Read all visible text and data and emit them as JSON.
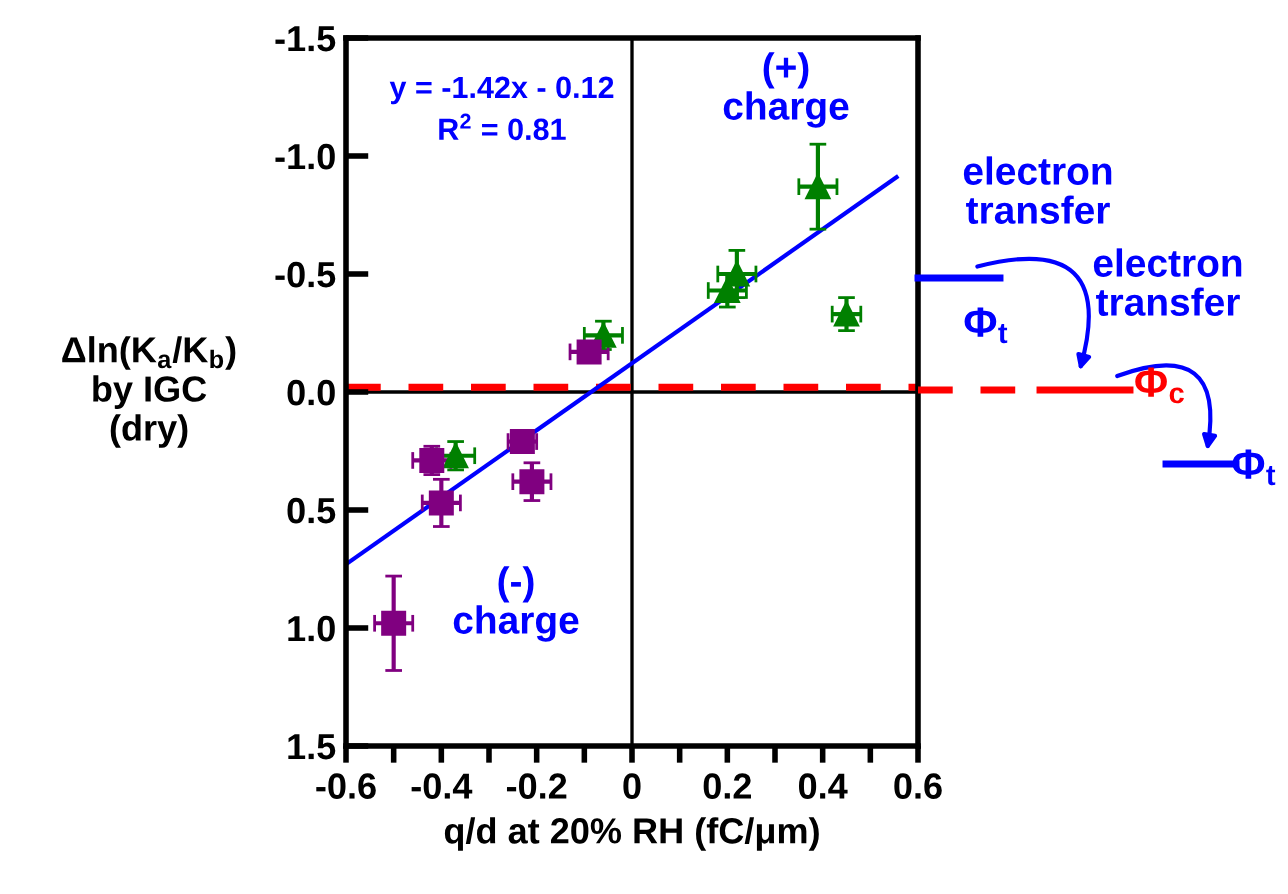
{
  "chart_data": {
    "type": "scatter",
    "xlabel": "q/d at 20% RH (fC/μm)",
    "ylabel": "Δln(K$_{a}$/K$_{b}$)\nby IGC\n(dry)",
    "xlim": [
      -0.6,
      0.6
    ],
    "ylim": [
      1.5,
      -1.5
    ],
    "xticks": [
      -0.6,
      {
        "value": -0.5,
        "label": null
      },
      -0.4,
      {
        "value": -0.3,
        "label": null
      },
      -0.2,
      {
        "value": -0.1,
        "label": null
      },
      {
        "value": 0,
        "label": "0"
      },
      {
        "value": 0.1,
        "label": null
      },
      0.2,
      {
        "value": 0.3,
        "label": null
      },
      0.4,
      {
        "value": 0.5,
        "label": null
      },
      0.6
    ],
    "yticks": [
      {
        "value": -1.5,
        "label": "-1.5"
      },
      {
        "value": -1.0,
        "label": "-1.0"
      },
      {
        "value": -0.5,
        "label": "-0.5"
      },
      {
        "value": 0,
        "label": "0.0"
      },
      {
        "value": 0.5,
        "label": "0.5"
      },
      {
        "value": 1.0,
        "label": "1.0"
      },
      {
        "value": 1.5,
        "label": "1.5"
      }
    ],
    "grid": false,
    "legend": false,
    "series": [
      {
        "marker": "triangle",
        "color": "#008000",
        "x": [
          0.39,
          0.22,
          0.2,
          0.45,
          -0.06,
          -0.37
        ],
        "values": [
          -0.87,
          -0.5,
          -0.43,
          -0.33,
          -0.24,
          0.27
        ],
        "errors": [
          0.18,
          0.1,
          0.07,
          0.07,
          0.06,
          0.06
        ],
        "xerrors": [
          0.04,
          0.04,
          0.04,
          0.03,
          0.04,
          0.04
        ]
      },
      {
        "marker": "square",
        "color": "#800080",
        "x": [
          -0.09,
          -0.42,
          -0.23,
          -0.21,
          -0.4,
          -0.5
        ],
        "values": [
          -0.17,
          0.29,
          0.21,
          0.38,
          0.47,
          0.98
        ],
        "errors": [
          0.03,
          0.06,
          0.04,
          0.08,
          0.1,
          0.2
        ],
        "xerrors": [
          0.04,
          0.04,
          0.03,
          0.04,
          0.04,
          0.04
        ]
      },
      {
        "type": "line",
        "color": "#0000ff",
        "line_style": "solid",
        "x": [
          -0.6,
          0.555
        ],
        "values": [
          0.73,
          -0.91
        ]
      }
    ],
    "ref_lines": [
      {
        "axis": "y",
        "value": 0,
        "color": "#000000",
        "line_style": "solid"
      },
      {
        "axis": "x",
        "value": 0,
        "color": "#000000",
        "line_style": "solid"
      },
      {
        "axis": "y",
        "value": -0.02,
        "color": "#ff0000",
        "line_style": "dashed"
      }
    ],
    "annotations": [
      "y = -1.42x - 0.12",
      "R$^{2}$ = 0.81",
      "(+)\ncharge",
      "(-)\ncharge",
      "electron\ntransfer",
      "electron\ntransfer",
      "Φ$_{t}$",
      "Φ$_{c}$",
      "Φ$_{t}$"
    ]
  }
}
